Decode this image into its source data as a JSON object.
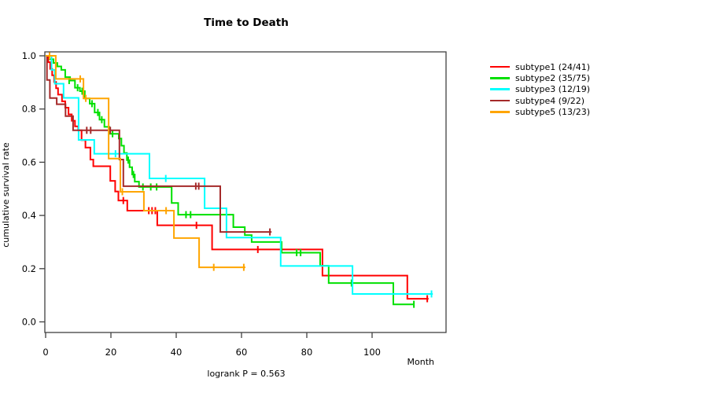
{
  "title": "Time to Death",
  "footer_note": "logrank P = 0.563",
  "legend": {
    "position": "right-top",
    "items": [
      {
        "label": "subtype1 (24/41)",
        "color": "#ff0000"
      },
      {
        "label": "subtype2 (35/75)",
        "color": "#00e000"
      },
      {
        "label": "subtype3 (12/19)",
        "color": "#00ffff"
      },
      {
        "label": "subtype4 (9/22)",
        "color": "#a52a2a"
      },
      {
        "label": "subtype5 (13/23)",
        "color": "#ffa500"
      }
    ]
  },
  "chart_data": {
    "type": "line",
    "subtype": "kaplan-meier-step",
    "title": "Time to Death",
    "xlabel": "Month",
    "ylabel": "cumulative survival rate",
    "xlim": [
      0,
      122.6
    ],
    "ylim": [
      0.0,
      1.0
    ],
    "x_ticks": [
      0,
      20,
      40,
      60,
      80,
      100
    ],
    "y_ticks": [
      "0.0",
      "0.2",
      "0.4",
      "0.6",
      "0.8",
      "1.0"
    ],
    "grid": false,
    "legend_position": "upper right outside",
    "series": [
      {
        "name": "subtype1 (24/41)",
        "color": "#ff0000",
        "steps": [
          [
            0,
            1.0
          ],
          [
            0.8,
            0.976
          ],
          [
            1.4,
            0.951
          ],
          [
            2.0,
            0.927
          ],
          [
            2.6,
            0.902
          ],
          [
            3.2,
            0.878
          ],
          [
            3.8,
            0.854
          ],
          [
            5.0,
            0.829
          ],
          [
            6.0,
            0.805
          ],
          [
            7.0,
            0.78
          ],
          [
            8.0,
            0.756
          ],
          [
            9.0,
            0.735
          ],
          [
            10.0,
            0.72
          ],
          [
            11.0,
            0.683
          ],
          [
            12.2,
            0.655
          ],
          [
            13.7,
            0.61
          ],
          [
            14.6,
            0.585
          ],
          [
            19.8,
            0.53
          ],
          [
            21.3,
            0.49
          ],
          [
            22.3,
            0.456
          ],
          [
            25.0,
            0.418
          ],
          [
            34.2,
            0.363
          ],
          [
            51.0,
            0.272
          ],
          [
            84.8,
            0.174
          ],
          [
            110.8,
            0.087
          ]
        ],
        "end": 117.3,
        "censors": [
          [
            23.8,
            0.456
          ],
          [
            31.6,
            0.418
          ],
          [
            32.6,
            0.418
          ],
          [
            33.6,
            0.418
          ],
          [
            46.2,
            0.363
          ],
          [
            65.0,
            0.272
          ],
          [
            116.9,
            0.087
          ]
        ]
      },
      {
        "name": "subtype2 (35/75)",
        "color": "#00e000",
        "steps": [
          [
            0,
            1.0
          ],
          [
            1.2,
            0.987
          ],
          [
            2.4,
            0.973
          ],
          [
            3.6,
            0.96
          ],
          [
            4.8,
            0.947
          ],
          [
            6.0,
            0.92
          ],
          [
            7.5,
            0.907
          ],
          [
            9.0,
            0.88
          ],
          [
            10.5,
            0.867
          ],
          [
            12.0,
            0.84
          ],
          [
            13.5,
            0.82
          ],
          [
            15.0,
            0.787
          ],
          [
            16.5,
            0.76
          ],
          [
            18.0,
            0.733
          ],
          [
            19.5,
            0.707
          ],
          [
            22.4,
            0.689
          ],
          [
            23.2,
            0.662
          ],
          [
            24.0,
            0.635
          ],
          [
            24.9,
            0.608
          ],
          [
            25.7,
            0.581
          ],
          [
            26.5,
            0.554
          ],
          [
            27.3,
            0.527
          ],
          [
            28.6,
            0.507
          ],
          [
            38.6,
            0.447
          ],
          [
            40.6,
            0.403
          ],
          [
            57.5,
            0.356
          ],
          [
            61.0,
            0.326
          ],
          [
            63.1,
            0.3
          ],
          [
            72.3,
            0.26
          ],
          [
            84.1,
            0.211
          ],
          [
            86.7,
            0.146
          ],
          [
            106.5,
            0.066
          ]
        ],
        "end": 113.0,
        "censors": [
          [
            7.2,
            0.907
          ],
          [
            9.8,
            0.88
          ],
          [
            11.2,
            0.867
          ],
          [
            14.2,
            0.82
          ],
          [
            16.0,
            0.787
          ],
          [
            17.2,
            0.76
          ],
          [
            20.5,
            0.707
          ],
          [
            25.3,
            0.608
          ],
          [
            26.9,
            0.554
          ],
          [
            29.8,
            0.507
          ],
          [
            32.2,
            0.507
          ],
          [
            34.0,
            0.507
          ],
          [
            43.0,
            0.403
          ],
          [
            44.4,
            0.403
          ],
          [
            76.9,
            0.26
          ],
          [
            78.1,
            0.26
          ],
          [
            93.7,
            0.146
          ],
          [
            112.8,
            0.066
          ]
        ]
      },
      {
        "name": "subtype3 (12/19)",
        "color": "#00ffff",
        "steps": [
          [
            0,
            1.0
          ],
          [
            1.8,
            0.947
          ],
          [
            2.8,
            0.895
          ],
          [
            5.5,
            0.842
          ],
          [
            10.1,
            0.684
          ],
          [
            14.9,
            0.632
          ],
          [
            31.8,
            0.539
          ],
          [
            48.7,
            0.427
          ],
          [
            55.4,
            0.317
          ],
          [
            72.0,
            0.21
          ],
          [
            94.0,
            0.105
          ]
        ],
        "end": 118.6,
        "censors": [
          [
            21.4,
            0.632
          ],
          [
            36.8,
            0.539
          ],
          [
            118.2,
            0.105
          ]
        ]
      },
      {
        "name": "subtype4 (9/22)",
        "color": "#a52a2a",
        "steps": [
          [
            0,
            1.0
          ],
          [
            0.4,
            0.909
          ],
          [
            1.3,
            0.841
          ],
          [
            3.4,
            0.818
          ],
          [
            6.1,
            0.773
          ],
          [
            8.4,
            0.72
          ],
          [
            22.6,
            0.61
          ],
          [
            23.8,
            0.51
          ],
          [
            53.5,
            0.338
          ]
        ],
        "end": 69.2,
        "censors": [
          [
            12.6,
            0.72
          ],
          [
            13.8,
            0.72
          ],
          [
            19.8,
            0.72
          ],
          [
            46.0,
            0.51
          ],
          [
            46.9,
            0.51
          ],
          [
            68.7,
            0.338
          ]
        ]
      },
      {
        "name": "subtype5 (13/23)",
        "color": "#ffa500",
        "steps": [
          [
            0,
            1.0
          ],
          [
            3.1,
            0.913
          ],
          [
            11.6,
            0.84
          ],
          [
            19.3,
            0.614
          ],
          [
            22.9,
            0.489
          ],
          [
            30.1,
            0.418
          ],
          [
            39.3,
            0.315
          ],
          [
            47.0,
            0.205
          ]
        ],
        "end": 61.2,
        "censors": [
          [
            1.2,
            1.0
          ],
          [
            10.6,
            0.913
          ],
          [
            12.3,
            0.84
          ],
          [
            23.5,
            0.489
          ],
          [
            36.9,
            0.418
          ],
          [
            51.5,
            0.205
          ],
          [
            60.7,
            0.205
          ]
        ]
      }
    ]
  }
}
